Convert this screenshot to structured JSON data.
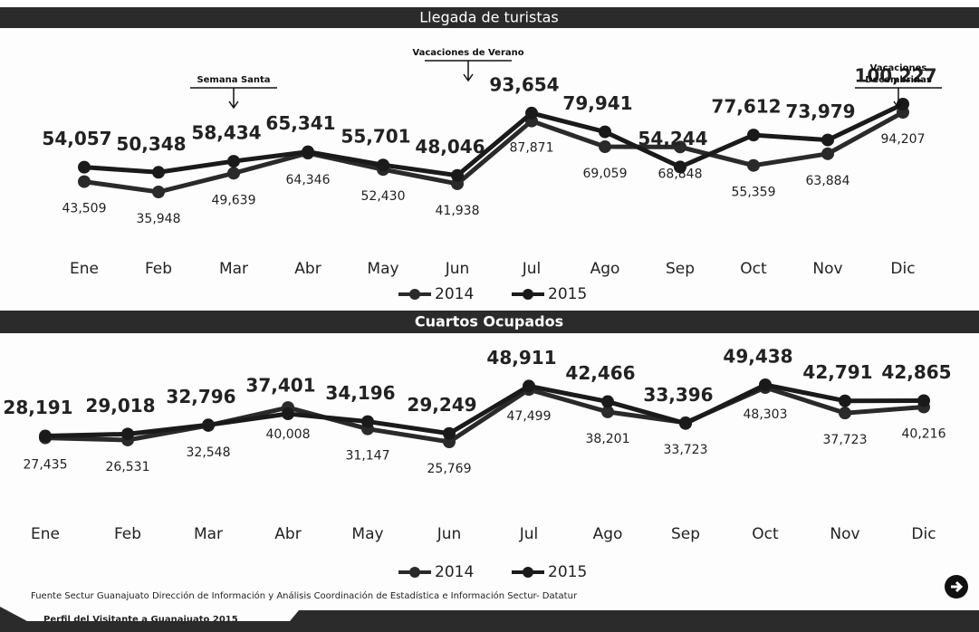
{
  "chart_data": [
    {
      "type": "line",
      "title": "Llegada de turistas",
      "categories": [
        "Ene",
        "Feb",
        "Mar",
        "Abr",
        "May",
        "Jun",
        "Jul",
        "Ago",
        "Sep",
        "Oct",
        "Nov",
        "Dic"
      ],
      "series": [
        {
          "name": "2014",
          "color": "#2a2a2a",
          "values": [
            43509,
            35948,
            49639,
            64346,
            52430,
            41938,
            87871,
            69059,
            68848,
            55359,
            63884,
            94207
          ],
          "value_labels": [
            "43,509",
            "35,948",
            "49,639",
            "64,346",
            "52,430",
            "41,938",
            "87,871",
            "69,059",
            "68,848",
            "55,359",
            "63,884",
            "94,207"
          ]
        },
        {
          "name": "2015",
          "color": "#1a1a1a",
          "values": [
            54057,
            50348,
            58434,
            65341,
            55701,
            48046,
            93654,
            79941,
            54244,
            77612,
            73979,
            100227
          ],
          "value_labels": [
            "54,057",
            "50,348",
            "58,434",
            "65,341",
            "55,701",
            "48,046",
            "93,654",
            "79,941",
            "54,244",
            "77,612",
            "73,979",
            "100,227"
          ]
        }
      ],
      "legend_position": "bottom",
      "annotations": [
        {
          "lines": [
            "Semana Santa"
          ],
          "category": "Mar"
        },
        {
          "lines": [
            "Vacaciones de Verano"
          ],
          "category": "Jun"
        },
        {
          "lines": [
            "Vacaciones",
            "Decembrinas"
          ],
          "category": "Dic"
        }
      ]
    },
    {
      "type": "line",
      "title": "Cuartos Ocupados",
      "categories": [
        "Ene",
        "Feb",
        "Mar",
        "Abr",
        "May",
        "Jun",
        "Jul",
        "Ago",
        "Sep",
        "Oct",
        "Nov",
        "Dic"
      ],
      "series": [
        {
          "name": "2014",
          "color": "#2a2a2a",
          "values": [
            27435,
            26531,
            32548,
            40008,
            31147,
            25769,
            47499,
            38201,
            33723,
            48303,
            37723,
            40216
          ],
          "value_labels": [
            "27,435",
            "26,531",
            "32,548",
            "40,008",
            "31,147",
            "25,769",
            "47,499",
            "38,201",
            "33,723",
            "48,303",
            "37,723",
            "40,216"
          ]
        },
        {
          "name": "2015",
          "color": "#1a1a1a",
          "values": [
            28191,
            29018,
            32796,
            37401,
            34196,
            29249,
            48911,
            42466,
            33396,
            49438,
            42791,
            42865
          ],
          "value_labels": [
            "28,191",
            "29,018",
            "32,796",
            "37,401",
            "34,196",
            "29,249",
            "48,911",
            "42,466",
            "33,396",
            "49,438",
            "42,791",
            "42,865"
          ]
        }
      ],
      "legend_position": "bottom"
    }
  ],
  "source": "Fuente Sectur Guanajuato Dirección de Información y Análisis Coordinación de Estadística e Información Sectur- Datatur",
  "footer": "Perfil del Visitante a Guanajuato 2015"
}
